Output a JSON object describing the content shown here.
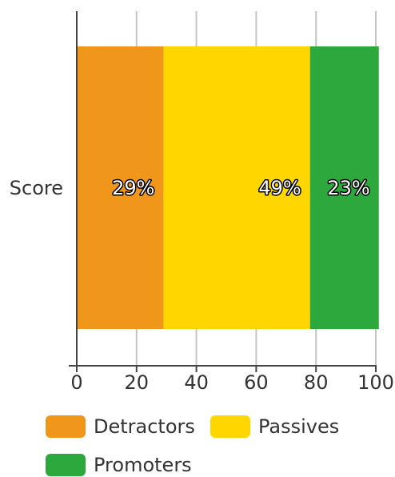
{
  "chart_data": {
    "type": "bar",
    "orientation": "horizontal",
    "stacked": true,
    "categories": [
      "Score"
    ],
    "series": [
      {
        "name": "Detractors",
        "values": [
          29
        ],
        "label": "29%",
        "color": "#f0961a"
      },
      {
        "name": "Passives",
        "values": [
          49
        ],
        "label": "49%",
        "color": "#ffd600"
      },
      {
        "name": "Promoters",
        "values": [
          23
        ],
        "label": "23%",
        "color": "#2ca83c"
      }
    ],
    "x_ticks": [
      "0",
      "20",
      "40",
      "60",
      "80",
      "100"
    ],
    "xlim": [
      0,
      100
    ],
    "grid": true,
    "legend_position": "bottom"
  }
}
